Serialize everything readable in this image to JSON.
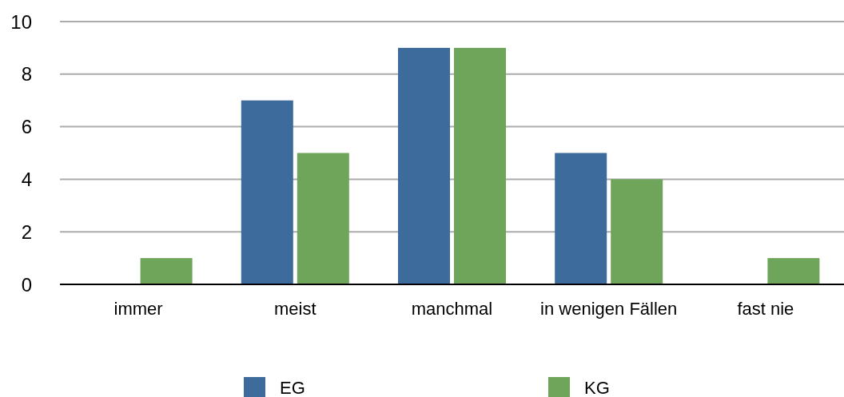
{
  "chart_data": {
    "type": "bar",
    "categories": [
      "immer",
      "meist",
      "manchmal",
      "in wenigen Fällen",
      "fast nie"
    ],
    "series": [
      {
        "name": "EG",
        "color": "#3d6b9b",
        "values": [
          0,
          7,
          9,
          5,
          0
        ]
      },
      {
        "name": "KG",
        "color": "#6ea55a",
        "values": [
          1,
          5,
          9,
          4,
          1
        ]
      }
    ],
    "ylim": [
      0,
      10
    ],
    "yticks": [
      0,
      2,
      4,
      6,
      8,
      10
    ],
    "grid": "y",
    "legend": "bottom"
  }
}
